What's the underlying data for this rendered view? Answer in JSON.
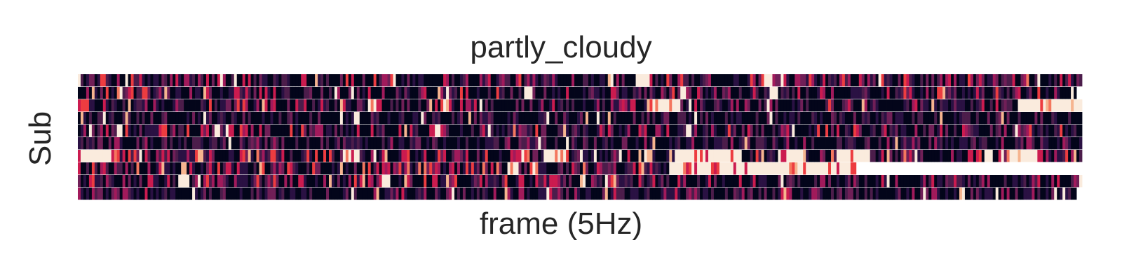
{
  "chart_data": {
    "type": "heatmap",
    "title": "partly_cloudy",
    "xlabel": "frame (5Hz)",
    "ylabel": "Sub",
    "n_rows": 10,
    "n_frames": 1800,
    "colormap": "rocket",
    "colormap_stops": [
      "#03051a",
      "#2a1143",
      "#4c1d4b",
      "#701f57",
      "#a11a5b",
      "#cb1b4f",
      "#ed3c40",
      "#f4775e",
      "#f6b48f",
      "#faebdd"
    ],
    "rows": [
      {
        "index": 0,
        "valid_frames": 1800,
        "mean": 0.22,
        "hot_bands": [
          [
            255,
            260
          ],
          [
            1000,
            1022
          ],
          [
            1230,
            1245
          ]
        ]
      },
      {
        "index": 1,
        "valid_frames": 1790,
        "mean": 0.2,
        "hot_bands": [
          [
            70,
            80
          ],
          [
            800,
            815
          ],
          [
            1080,
            1090
          ],
          [
            1240,
            1255
          ]
        ]
      },
      {
        "index": 2,
        "valid_frames": 1800,
        "mean": 0.2,
        "hot_bands": [
          [
            520,
            540
          ],
          [
            1020,
            1080
          ],
          [
            1685,
            1800
          ]
        ]
      },
      {
        "index": 3,
        "valid_frames": 1800,
        "mean": 0.12,
        "hot_bands": []
      },
      {
        "index": 4,
        "valid_frames": 1800,
        "mean": 0.22,
        "hot_bands": [
          [
            70,
            80
          ],
          [
            245,
            255
          ],
          [
            640,
            650
          ],
          [
            1090,
            1100
          ]
        ]
      },
      {
        "index": 5,
        "valid_frames": 1800,
        "mean": 0.14,
        "hot_bands": []
      },
      {
        "index": 6,
        "valid_frames": 1800,
        "mean": 0.32,
        "hot_bands": [
          [
            0,
            60
          ],
          [
            475,
            505
          ],
          [
            835,
            880
          ],
          [
            1070,
            1190
          ],
          [
            1255,
            1300
          ],
          [
            1360,
            1420
          ],
          [
            1670,
            1720
          ]
        ]
      },
      {
        "index": 7,
        "valid_frames": 1395,
        "mean": 0.26,
        "hot_bands": [
          [
            770,
            790
          ],
          [
            1060,
            1395
          ]
        ]
      },
      {
        "index": 8,
        "valid_frames": 1800,
        "mean": 0.2,
        "hot_bands": [
          [
            180,
            200
          ],
          [
            540,
            560
          ]
        ]
      },
      {
        "index": 9,
        "valid_frames": 1790,
        "mean": 0.16,
        "hot_bands": [
          [
            1580,
            1588
          ]
        ]
      }
    ],
    "grid": false,
    "legend": "none"
  }
}
